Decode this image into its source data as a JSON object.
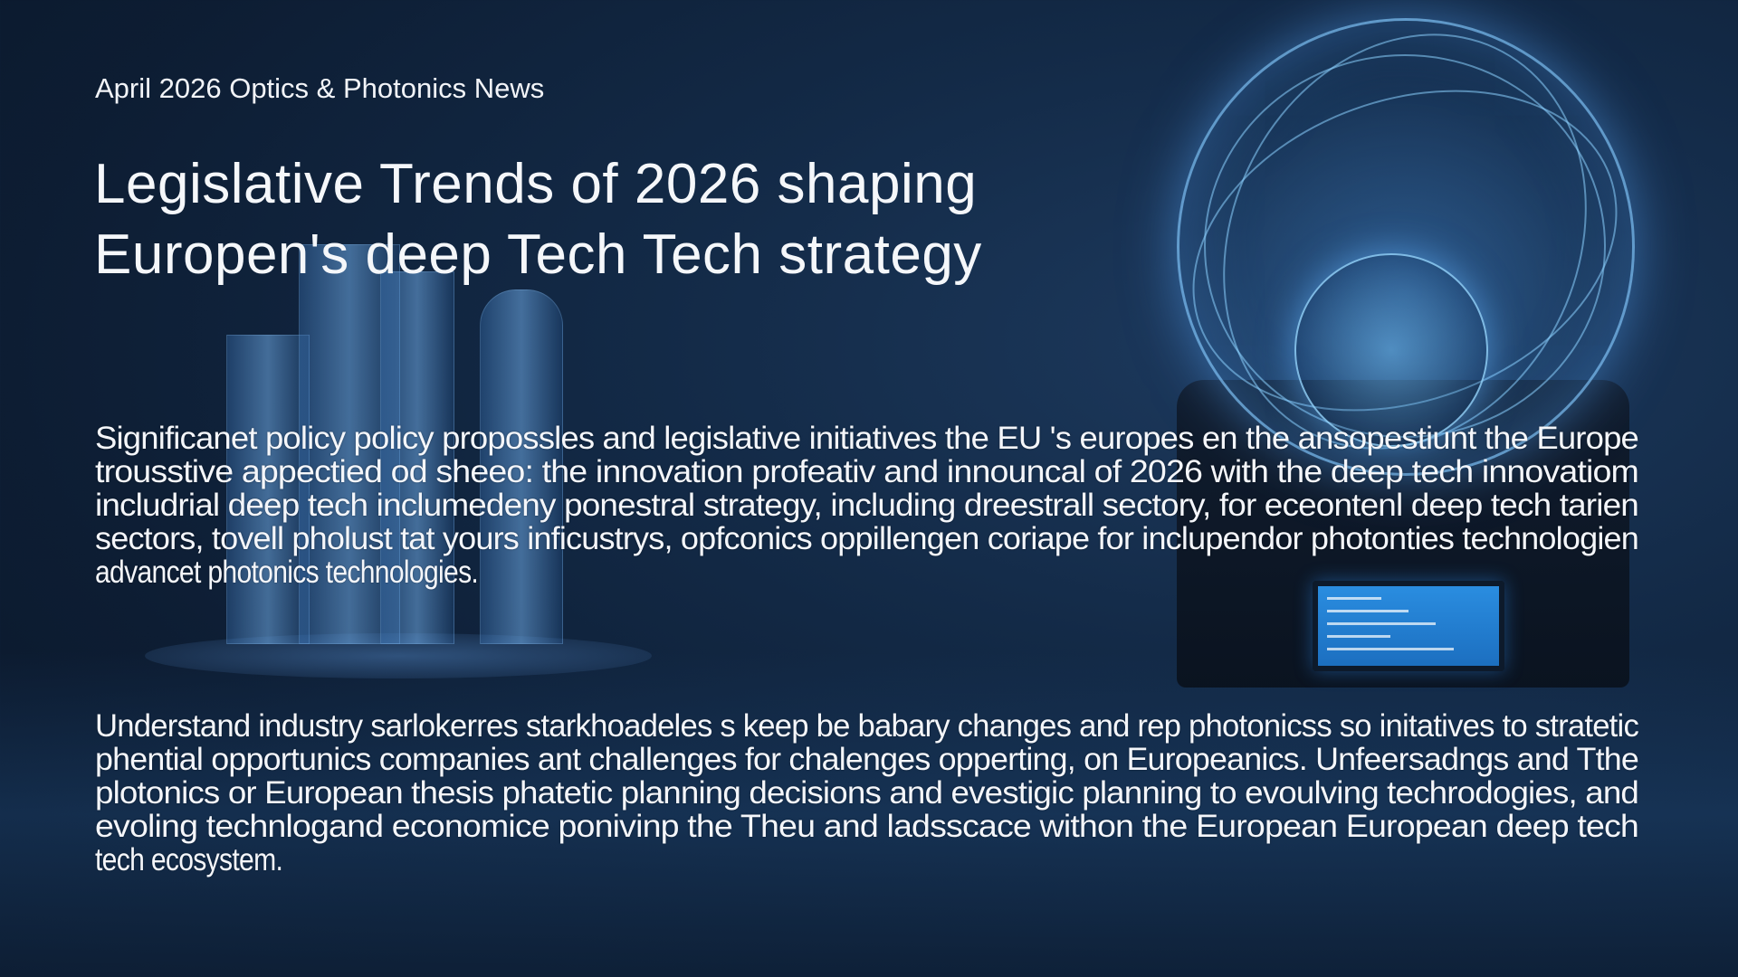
{
  "header": {
    "kicker": "April 2026 Optics & Photonics News",
    "title_lines": [
      "Legislative Trends of 2026 shaping",
      "Europen's deep Tech Tech strategy"
    ]
  },
  "paragraphs": [
    {
      "lines": [
        "Significanet policy policy propossles and legislative initiatives the EU 's europes en the ansopestiunt the Europe",
        "trousstive appectied od sheeo: the innovation profeativ and innouncal of 2026 with the deep tech innovatiom",
        "includrial deep tech inclumedeny ponestral strategy, including dreestrall sectory, for eceontenl deep tech tarien",
        "sectors, tovell pholust tat yours inficustrys, opfconics oppillengen coriape for inclupendor photonties technologien",
        "advancet photonics technologies."
      ]
    },
    {
      "lines": [
        "Understand industry sarlokerres starkhoadeles s keep be babary changes and rep photonicss so initatives to stratetic",
        "phential opportunics companies ant challenges for chalenges opperting, on Europeanics. Unfeersadngs and  Tthe",
        "plotonics or  European thesis phatetic planning decisions and evestigic planning to evoulving techrodogies, and",
        "evoling technlogand economice ponivinp the Theu  and ladsscace withon the European  European   deep tech",
        "tech ecosystem."
      ]
    }
  ],
  "colors": {
    "background": "#0d1d33",
    "accent_glow": "#5aaaff",
    "text": "#f4f6fa"
  }
}
